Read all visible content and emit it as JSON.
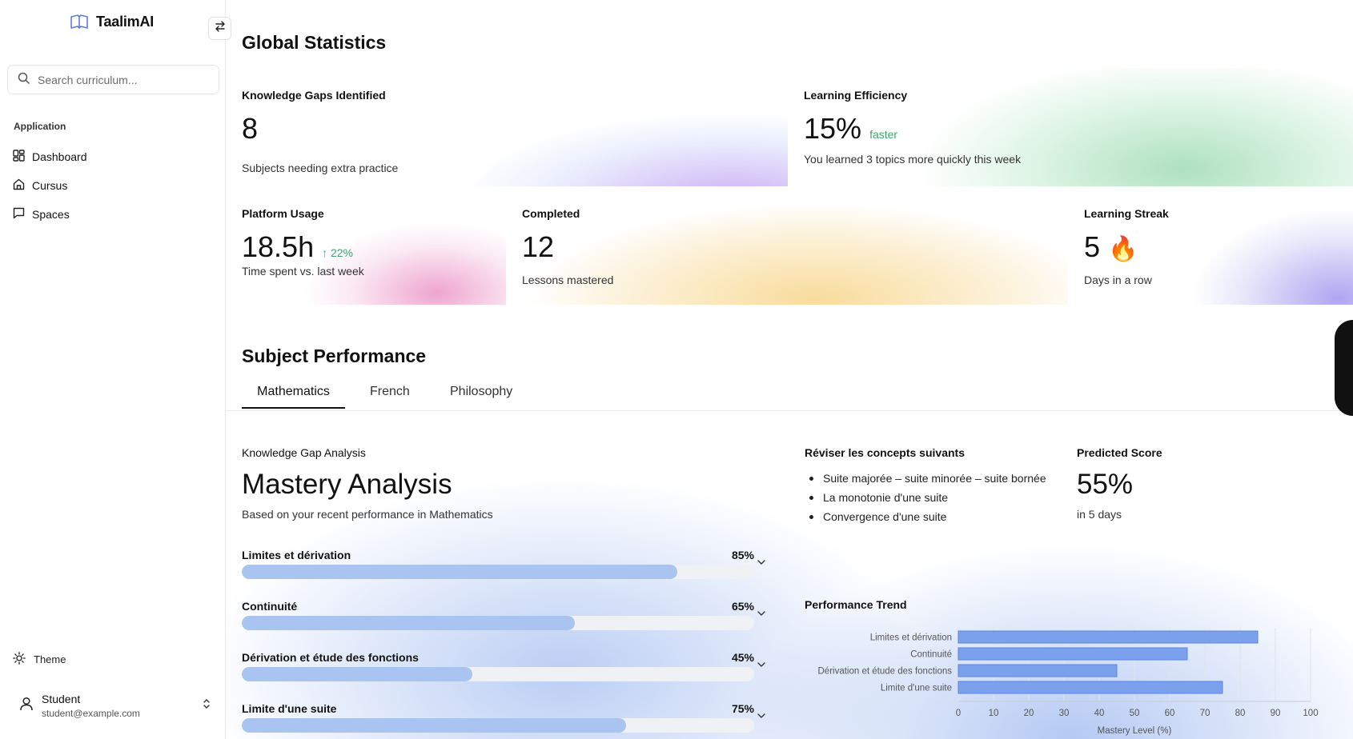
{
  "brand": {
    "name": "TaalimAI",
    "logo_icon": "open-book-icon",
    "logo_color": "#5b7fe0"
  },
  "search": {
    "placeholder": "Search curriculum..."
  },
  "sidebar": {
    "section_label": "Application",
    "items": [
      {
        "label": "Dashboard",
        "icon": "grid-icon"
      },
      {
        "label": "Cursus",
        "icon": "home-icon"
      },
      {
        "label": "Spaces",
        "icon": "chat-icon"
      }
    ],
    "theme_label": "Theme",
    "user": {
      "name": "Student",
      "email": "student@example.com"
    }
  },
  "global": {
    "title": "Global Statistics",
    "cards": {
      "gaps": {
        "label": "Knowledge Gaps Identified",
        "value": "8",
        "sub": "Subjects needing extra practice"
      },
      "efficiency": {
        "label": "Learning Efficiency",
        "value": "15%",
        "accent": "faster",
        "sub": "You learned 3 topics more quickly this week"
      },
      "usage": {
        "label": "Platform Usage",
        "value": "18.5h",
        "accent": "↑ 22%",
        "sub": "Time spent vs. last week"
      },
      "completed": {
        "label": "Completed",
        "value": "12",
        "sub": "Lessons mastered"
      },
      "streak": {
        "label": "Learning Streak",
        "value": "5",
        "emoji": "🔥",
        "sub": "Days in a row"
      }
    },
    "accent_color": "#3aa66e"
  },
  "subject": {
    "title": "Subject Performance",
    "tabs": [
      "Mathematics",
      "French",
      "Philosophy"
    ],
    "active_tab": "Mathematics",
    "analysis": {
      "label": "Knowledge Gap Analysis",
      "title": "Mastery Analysis",
      "sub": "Based on your recent performance in Mathematics",
      "topics": [
        {
          "name": "Limites et dérivation",
          "pct_label": "85%",
          "value": 85
        },
        {
          "name": "Continuité",
          "pct_label": "65%",
          "value": 65
        },
        {
          "name": "Dérivation et étude des fonctions",
          "pct_label": "45%",
          "value": 45
        },
        {
          "name": "Limite d'une suite",
          "pct_label": "75%",
          "value": 75
        }
      ]
    },
    "review": {
      "title": "Réviser les concepts suivants",
      "items": [
        "Suite majorée – suite minorée – suite bornée",
        "La monotonie d'une suite",
        "Convergence d'une suite"
      ]
    },
    "predicted": {
      "label": "Predicted Score",
      "value": "55%",
      "sub": "in 5 days"
    },
    "trend_title": "Performance Trend"
  },
  "chart_data": {
    "type": "bar",
    "orientation": "horizontal",
    "categories": [
      "Limites et dérivation",
      "Continuité",
      "Dérivation et étude des fonctions",
      "Limite d'une suite"
    ],
    "values": [
      85,
      65,
      45,
      75
    ],
    "xlabel": "Mastery Level (%)",
    "xlim": [
      0,
      100
    ],
    "xticks": [
      "0",
      "10",
      "20",
      "30",
      "40",
      "50",
      "60",
      "70",
      "80",
      "90",
      "100"
    ],
    "grid": true,
    "bar_color": "#7ba0ec"
  }
}
